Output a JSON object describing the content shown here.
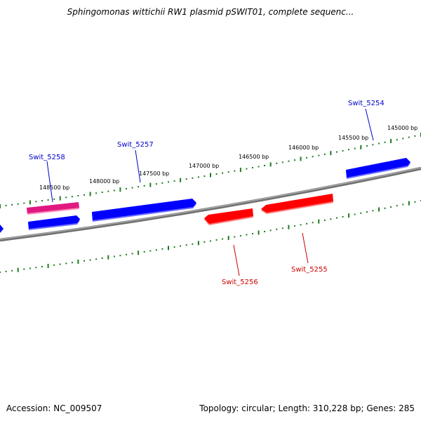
{
  "title": "Sphingomonas wittichii RW1 plasmid pSWIT01, complete sequenc...",
  "footer": {
    "accession": "Accession: NC_009507",
    "summary": "Topology: circular; Length: 310,228 bp; Genes: 285"
  },
  "colors": {
    "forward_gene": "#0000ff",
    "forward_gene_alt": "#e0187f",
    "reverse_gene": "#ff0000",
    "backbone": "#808080",
    "ticks": "#1f7a1f",
    "forward_label": "#0000cc",
    "reverse_label": "#cc0000"
  },
  "ticks": [
    {
      "label": "148500 bp"
    },
    {
      "label": "148000 bp"
    },
    {
      "label": "147500 bp"
    },
    {
      "label": "147000 bp"
    },
    {
      "label": "146500 bp"
    },
    {
      "label": "146000 bp"
    },
    {
      "label": "145500 bp"
    },
    {
      "label": "145000 bp"
    }
  ],
  "genes": [
    {
      "name": "Swit_5258",
      "strand": "+",
      "labeled": true
    },
    {
      "name": "Swit_5257",
      "strand": "+",
      "labeled": true
    },
    {
      "name": "Swit_5254",
      "strand": "+",
      "labeled": true
    },
    {
      "name": "Swit_5256",
      "strand": "-",
      "labeled": true
    },
    {
      "name": "Swit_5255",
      "strand": "-",
      "labeled": true
    }
  ]
}
